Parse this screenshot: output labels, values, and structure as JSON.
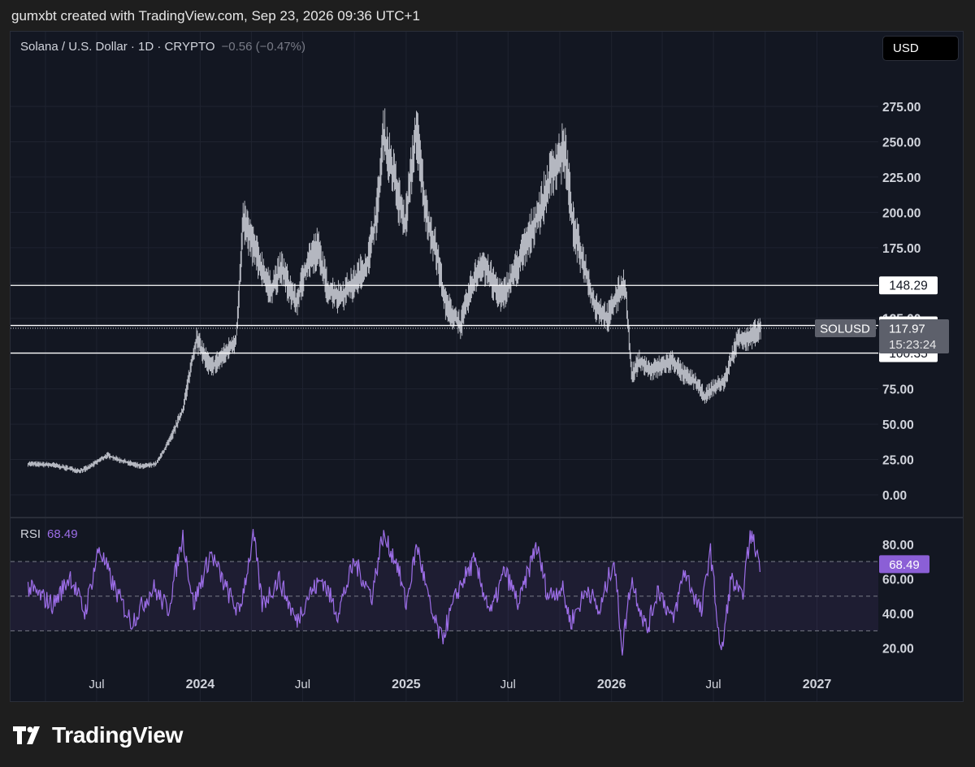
{
  "header": {
    "text": "gumxbt created with TradingView.com, Sep 23, 2026 09:36 UTC+1"
  },
  "legend": {
    "symbol": "Solana / U.S. Dollar · 1D · CRYPTO",
    "change": "−0.56 (−0.47%)"
  },
  "currency_button": {
    "label": "USD"
  },
  "rsi_legend": {
    "label": "RSI",
    "value": "68.49"
  },
  "brand": {
    "name": "TradingView"
  },
  "colors": {
    "background": "#131722",
    "candles": "#d1d4dc",
    "rsi": "#9d6ee8",
    "rsi_tag": "#8b5fd6",
    "price_tag": "#5d606b"
  },
  "chart_data": [
    {
      "type": "line",
      "title": "Solana / U.S. Dollar · 1D · CRYPTO",
      "xlabel": "",
      "ylabel": "",
      "x_ticks": [
        "Jul",
        "2024",
        "Jul",
        "2025",
        "Jul",
        "2026",
        "Jul",
        "2027"
      ],
      "y_ticks": [
        "0.00",
        "25.00",
        "50.00",
        "75.00",
        "100.00",
        "125.00",
        "150.00",
        "175.00",
        "200.00",
        "225.00",
        "250.00",
        "275.00"
      ],
      "ylim": [
        -10,
        300
      ],
      "grid": true,
      "series": [
        {
          "name": "SOLUSD",
          "x": [
            "2023-03-01",
            "2023-04-15",
            "2023-06-01",
            "2023-06-15",
            "2023-07-20",
            "2023-08-15",
            "2023-09-20",
            "2023-10-15",
            "2023-11-10",
            "2023-12-01",
            "2023-12-25",
            "2024-01-20",
            "2024-02-15",
            "2024-03-05",
            "2024-03-18",
            "2024-04-10",
            "2024-05-05",
            "2024-05-25",
            "2024-06-20",
            "2024-07-10",
            "2024-07-28",
            "2024-08-15",
            "2024-09-05",
            "2024-10-01",
            "2024-10-25",
            "2024-11-10",
            "2024-11-22",
            "2024-12-10",
            "2024-12-30",
            "2025-01-19",
            "2025-02-05",
            "2025-02-25",
            "2025-03-12",
            "2025-04-08",
            "2025-04-25",
            "2025-05-15",
            "2025-06-05",
            "2025-06-22",
            "2025-07-15",
            "2025-08-10",
            "2025-08-30",
            "2025-09-18",
            "2025-10-10",
            "2025-10-25",
            "2025-11-15",
            "2025-12-01",
            "2025-12-25",
            "2026-01-10",
            "2026-01-25",
            "2026-02-06",
            "2026-02-20",
            "2026-03-10",
            "2026-04-01",
            "2026-04-20",
            "2026-05-10",
            "2026-05-30",
            "2026-06-15",
            "2026-07-01",
            "2026-07-20",
            "2026-08-05",
            "2026-08-15",
            "2026-09-01",
            "2026-09-23"
          ],
          "y": [
            22,
            21,
            17,
            19,
            28,
            24,
            20,
            22,
            40,
            60,
            110,
            90,
            100,
            110,
            195,
            170,
            145,
            160,
            135,
            165,
            175,
            145,
            140,
            150,
            165,
            200,
            255,
            225,
            190,
            260,
            200,
            170,
            135,
            120,
            145,
            165,
            150,
            140,
            160,
            185,
            205,
            230,
            245,
            190,
            160,
            135,
            125,
            140,
            150,
            85,
            95,
            88,
            92,
            95,
            85,
            80,
            70,
            76,
            80,
            100,
            112,
            110,
            117.97
          ]
        },
        {
          "name": "level",
          "y": [
            148.29
          ]
        },
        {
          "name": "level",
          "y": [
            119.92
          ]
        },
        {
          "name": "level",
          "y": [
            100.35
          ]
        }
      ],
      "last_price": "117.97",
      "countdown": "15:23:24",
      "price_tag_label": "SOLUSD",
      "level_labels": [
        "148.29",
        "119.92",
        "100.35"
      ]
    },
    {
      "type": "line",
      "title": "RSI",
      "y_ticks": [
        "20.00",
        "40.00",
        "60.00",
        "80.00"
      ],
      "ylim": [
        10,
        90
      ],
      "bands": [
        30,
        50,
        70
      ],
      "series": [
        {
          "name": "RSI",
          "x": [
            "2023-03-01",
            "2023-04-15",
            "2023-05-15",
            "2023-06-10",
            "2023-07-05",
            "2023-08-01",
            "2023-09-01",
            "2023-10-10",
            "2023-11-05",
            "2023-12-01",
            "2023-12-20",
            "2024-01-20",
            "2024-02-15",
            "2024-03-10",
            "2024-04-05",
            "2024-04-20",
            "2024-05-20",
            "2024-06-20",
            "2024-07-10",
            "2024-08-05",
            "2024-09-01",
            "2024-10-01",
            "2024-11-01",
            "2024-11-20",
            "2024-12-15",
            "2025-01-01",
            "2025-01-20",
            "2025-02-15",
            "2025-03-05",
            "2025-04-05",
            "2025-05-01",
            "2025-06-01",
            "2025-06-25",
            "2025-07-20",
            "2025-08-20",
            "2025-09-10",
            "2025-10-05",
            "2025-10-20",
            "2025-11-20",
            "2025-12-10",
            "2026-01-05",
            "2026-01-20",
            "2026-02-05",
            "2026-03-05",
            "2026-03-25",
            "2026-04-20",
            "2026-05-10",
            "2026-06-10",
            "2026-06-25",
            "2026-07-15",
            "2026-08-01",
            "2026-08-10",
            "2026-08-20",
            "2026-09-05",
            "2026-09-23"
          ],
          "y": [
            55,
            45,
            62,
            40,
            78,
            55,
            35,
            55,
            42,
            85,
            45,
            75,
            55,
            40,
            85,
            45,
            60,
            35,
            50,
            60,
            40,
            70,
            50,
            85,
            70,
            45,
            80,
            40,
            25,
            55,
            70,
            40,
            65,
            45,
            80,
            50,
            55,
            35,
            55,
            40,
            72,
            20,
            60,
            30,
            55,
            35,
            65,
            40,
            78,
            15,
            60,
            55,
            48,
            86,
            68.49
          ]
        }
      ],
      "last_value": "68.49"
    }
  ]
}
